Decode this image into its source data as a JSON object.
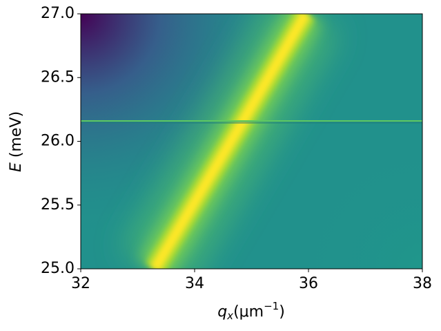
{
  "chart_data": {
    "type": "heatmap",
    "xlabel": [
      "q",
      "x",
      "(μm",
      "−1",
      ")"
    ],
    "ylabel": [
      "E",
      " (meV)"
    ],
    "xlim": [
      32,
      38
    ],
    "ylim": [
      25,
      27
    ],
    "xticks": [
      32,
      34,
      36,
      38
    ],
    "yticks": [
      {
        "value": 25,
        "label": "25.0"
      },
      {
        "value": 25.5,
        "label": "25.5"
      },
      {
        "value": 26,
        "label": "26.0"
      },
      {
        "value": 26.5,
        "label": "26.5"
      },
      {
        "value": 27,
        "label": "27.0"
      }
    ],
    "band": {
      "x": [
        33.3,
        34.85,
        35.95
      ],
      "y": [
        25,
        26.16,
        27
      ],
      "color": "#fde725"
    },
    "flat_level": {
      "x": [
        32,
        38
      ],
      "y": [
        26.16,
        26.16
      ],
      "color": "#5ec962"
    },
    "background": "#21918c"
  }
}
